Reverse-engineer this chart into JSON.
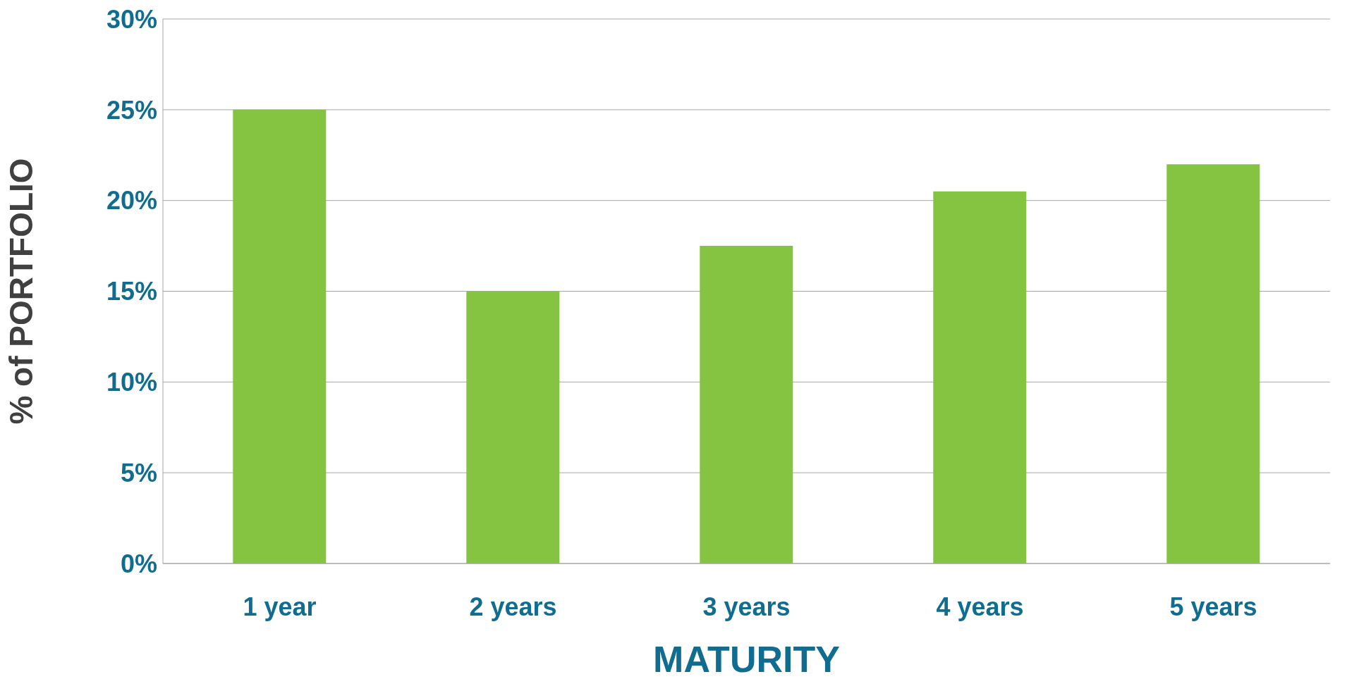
{
  "chart_data": {
    "type": "bar",
    "xlabel": "MATURITY",
    "ylabel": "% of PORTFOLIO",
    "categories": [
      "1 year",
      "2 years",
      "3 years",
      "4 years",
      "5 years"
    ],
    "values": [
      25,
      15,
      17.5,
      20.5,
      22
    ],
    "color": "#84c441",
    "ylim": [
      0,
      30
    ],
    "yticks": [
      {
        "value": 0,
        "label": "0%"
      },
      {
        "value": 5,
        "label": "5%"
      },
      {
        "value": 10,
        "label": "10%"
      },
      {
        "value": 15,
        "label": "15%"
      },
      {
        "value": 20,
        "label": "20%"
      },
      {
        "value": 25,
        "label": "25%"
      },
      {
        "value": 30,
        "label": "30%"
      }
    ],
    "grid": "y",
    "legend": false
  }
}
